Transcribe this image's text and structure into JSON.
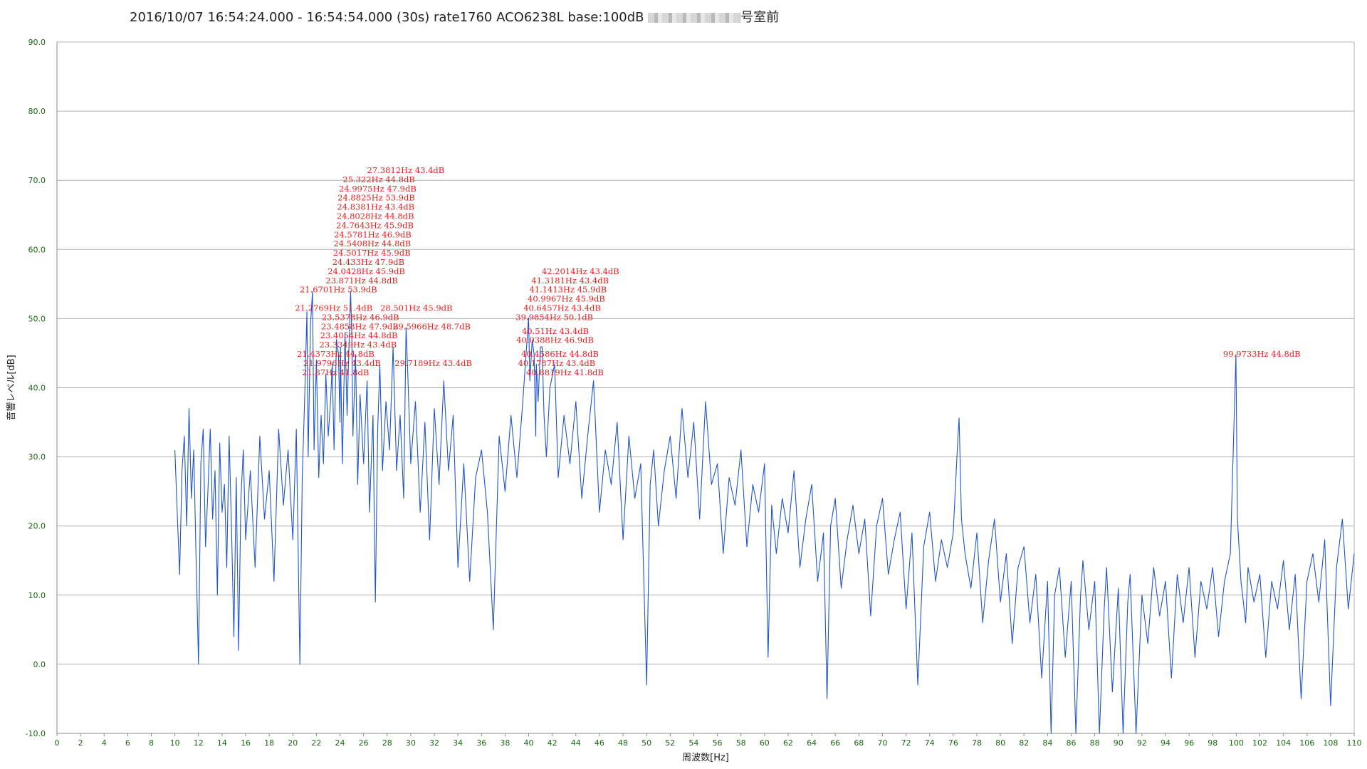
{
  "title": {
    "prefix": "2016/10/07 16:54:24.000 - 16:54:54.000 (30s) rate1760 ACO6238L base:100dB",
    "suffix": "号室前"
  },
  "colors": {
    "series": "#1f55cc",
    "grid": "#b4b4b4",
    "ticks": "#176b0f",
    "annotations": "#ee1c1c"
  },
  "chart_data": {
    "type": "line",
    "xlabel": "周波数[Hz]",
    "ylabel": "音響レベル[dB]",
    "xlim": [
      0,
      110
    ],
    "ylim": [
      -10,
      90
    ],
    "x_tick_step": 2,
    "y_ticks": [
      "-10.0",
      "0.0",
      "10.0",
      "20.0",
      "30.0",
      "40.0",
      "50.0",
      "60.0",
      "70.0",
      "80.0",
      "90.0"
    ],
    "grid": "horizontal",
    "series": [
      {
        "values": [
          [
            10,
            31
          ],
          [
            10.2,
            22
          ],
          [
            10.4,
            13
          ],
          [
            10.6,
            28
          ],
          [
            10.8,
            33
          ],
          [
            11,
            20
          ],
          [
            11.2,
            37
          ],
          [
            11.4,
            24
          ],
          [
            11.6,
            31
          ],
          [
            11.8,
            15
          ],
          [
            12,
            0
          ],
          [
            12.2,
            29
          ],
          [
            12.4,
            34
          ],
          [
            12.6,
            17
          ],
          [
            12.8,
            25
          ],
          [
            13,
            34
          ],
          [
            13.2,
            21
          ],
          [
            13.4,
            28
          ],
          [
            13.6,
            10
          ],
          [
            13.8,
            32
          ],
          [
            14,
            22
          ],
          [
            14.2,
            26
          ],
          [
            14.4,
            14
          ],
          [
            14.6,
            33
          ],
          [
            14.8,
            20
          ],
          [
            15,
            4
          ],
          [
            15.2,
            27
          ],
          [
            15.4,
            2
          ],
          [
            15.6,
            24
          ],
          [
            15.8,
            31
          ],
          [
            16,
            18
          ],
          [
            16.4,
            28
          ],
          [
            16.8,
            14
          ],
          [
            17.2,
            33
          ],
          [
            17.6,
            21
          ],
          [
            18,
            28
          ],
          [
            18.4,
            12
          ],
          [
            18.8,
            34
          ],
          [
            19.2,
            23
          ],
          [
            19.6,
            31
          ],
          [
            20,
            18
          ],
          [
            20.3,
            34
          ],
          [
            20.6,
            0
          ],
          [
            20.8,
            27
          ],
          [
            21,
            38
          ],
          [
            21.2,
            51
          ],
          [
            21.3,
            30
          ],
          [
            21.5,
            49
          ],
          [
            21.67,
            53.9
          ],
          [
            21.8,
            31
          ],
          [
            22,
            44
          ],
          [
            22.2,
            27
          ],
          [
            22.4,
            36
          ],
          [
            22.6,
            29
          ],
          [
            22.8,
            42
          ],
          [
            23,
            33
          ],
          [
            23.2,
            38
          ],
          [
            23.34,
            43.4
          ],
          [
            23.5,
            31
          ],
          [
            23.7,
            47
          ],
          [
            23.87,
            44.8
          ],
          [
            24,
            35
          ],
          [
            24.04,
            45.9
          ],
          [
            24.2,
            29
          ],
          [
            24.43,
            47.9
          ],
          [
            24.6,
            36
          ],
          [
            24.76,
            45.9
          ],
          [
            24.9,
            53.9
          ],
          [
            25,
            47.9
          ],
          [
            25.1,
            33
          ],
          [
            25.32,
            44.8
          ],
          [
            25.5,
            26
          ],
          [
            25.7,
            39
          ],
          [
            26,
            29
          ],
          [
            26.3,
            41
          ],
          [
            26.5,
            22
          ],
          [
            26.8,
            36
          ],
          [
            27,
            9
          ],
          [
            27.2,
            34
          ],
          [
            27.38,
            43.4
          ],
          [
            27.6,
            28
          ],
          [
            27.9,
            38
          ],
          [
            28.2,
            31
          ],
          [
            28.5,
            45.9
          ],
          [
            28.8,
            28
          ],
          [
            29.1,
            36
          ],
          [
            29.4,
            24
          ],
          [
            29.6,
            48.7
          ],
          [
            29.72,
            43.4
          ],
          [
            30,
            29
          ],
          [
            30.4,
            38
          ],
          [
            30.8,
            22
          ],
          [
            31.2,
            35
          ],
          [
            31.6,
            18
          ],
          [
            32,
            37
          ],
          [
            32.4,
            26
          ],
          [
            32.8,
            41
          ],
          [
            33.2,
            28
          ],
          [
            33.6,
            36
          ],
          [
            34,
            14
          ],
          [
            34.5,
            29
          ],
          [
            35,
            12
          ],
          [
            35.5,
            27
          ],
          [
            36,
            31
          ],
          [
            36.5,
            22
          ],
          [
            37,
            5
          ],
          [
            37.5,
            33
          ],
          [
            38,
            25
          ],
          [
            38.5,
            36
          ],
          [
            39,
            27
          ],
          [
            39.5,
            38
          ],
          [
            39.99,
            50.1
          ],
          [
            40.1,
            41
          ],
          [
            40.3,
            46.9
          ],
          [
            40.46,
            44.8
          ],
          [
            40.6,
            33
          ],
          [
            40.65,
            43.4
          ],
          [
            40.8,
            38
          ],
          [
            41,
            45.9
          ],
          [
            41.14,
            45.9
          ],
          [
            41.3,
            36
          ],
          [
            41.5,
            30
          ],
          [
            41.8,
            40
          ],
          [
            42.2,
            43.4
          ],
          [
            42.5,
            27
          ],
          [
            43,
            36
          ],
          [
            43.5,
            29
          ],
          [
            44,
            38
          ],
          [
            44.5,
            24
          ],
          [
            45,
            33
          ],
          [
            45.5,
            41
          ],
          [
            46,
            22
          ],
          [
            46.5,
            31
          ],
          [
            47,
            26
          ],
          [
            47.5,
            35
          ],
          [
            48,
            18
          ],
          [
            48.5,
            33
          ],
          [
            49,
            24
          ],
          [
            49.5,
            29
          ],
          [
            50,
            -3
          ],
          [
            50.3,
            26
          ],
          [
            50.6,
            31
          ],
          [
            51,
            20
          ],
          [
            51.5,
            28
          ],
          [
            52,
            33
          ],
          [
            52.5,
            24
          ],
          [
            53,
            37
          ],
          [
            53.5,
            27
          ],
          [
            54,
            35
          ],
          [
            54.5,
            21
          ],
          [
            55,
            38
          ],
          [
            55.5,
            26
          ],
          [
            56,
            29
          ],
          [
            56.5,
            16
          ],
          [
            57,
            27
          ],
          [
            57.5,
            23
          ],
          [
            58,
            31
          ],
          [
            58.5,
            17
          ],
          [
            59,
            26
          ],
          [
            59.5,
            22
          ],
          [
            60,
            29
          ],
          [
            60.3,
            1
          ],
          [
            60.6,
            23
          ],
          [
            61,
            16
          ],
          [
            61.5,
            24
          ],
          [
            62,
            19
          ],
          [
            62.5,
            28
          ],
          [
            63,
            14
          ],
          [
            63.5,
            21
          ],
          [
            64,
            26
          ],
          [
            64.5,
            12
          ],
          [
            65,
            19
          ],
          [
            65.3,
            -5
          ],
          [
            65.6,
            20
          ],
          [
            66,
            24
          ],
          [
            66.5,
            11
          ],
          [
            67,
            18
          ],
          [
            67.5,
            23
          ],
          [
            68,
            16
          ],
          [
            68.5,
            21
          ],
          [
            69,
            7
          ],
          [
            69.5,
            20
          ],
          [
            70,
            24
          ],
          [
            70.5,
            13
          ],
          [
            71,
            18
          ],
          [
            71.5,
            22
          ],
          [
            72,
            8
          ],
          [
            72.5,
            19
          ],
          [
            73,
            -3
          ],
          [
            73.5,
            17
          ],
          [
            74,
            22
          ],
          [
            74.5,
            12
          ],
          [
            75,
            18
          ],
          [
            75.5,
            14
          ],
          [
            76,
            19
          ],
          [
            76.4,
            33
          ],
          [
            76.5,
            35.6
          ],
          [
            76.7,
            21
          ],
          [
            77,
            16
          ],
          [
            77.5,
            11
          ],
          [
            78,
            19
          ],
          [
            78.5,
            6
          ],
          [
            79,
            15
          ],
          [
            79.5,
            21
          ],
          [
            80,
            9
          ],
          [
            80.5,
            16
          ],
          [
            81,
            3
          ],
          [
            81.5,
            14
          ],
          [
            82,
            17
          ],
          [
            82.5,
            6
          ],
          [
            83,
            13
          ],
          [
            83.5,
            -2
          ],
          [
            84,
            12
          ],
          [
            84.3,
            -10
          ],
          [
            84.6,
            10
          ],
          [
            85,
            14
          ],
          [
            85.5,
            1
          ],
          [
            86,
            12
          ],
          [
            86.4,
            -10
          ],
          [
            86.8,
            10
          ],
          [
            87,
            15
          ],
          [
            87.5,
            5
          ],
          [
            88,
            12
          ],
          [
            88.4,
            -10
          ],
          [
            88.8,
            8
          ],
          [
            89,
            14
          ],
          [
            89.5,
            -4
          ],
          [
            90,
            11
          ],
          [
            90.4,
            -10
          ],
          [
            90.8,
            9
          ],
          [
            91,
            13
          ],
          [
            91.5,
            -10
          ],
          [
            92,
            10
          ],
          [
            92.5,
            3
          ],
          [
            93,
            14
          ],
          [
            93.5,
            7
          ],
          [
            94,
            12
          ],
          [
            94.5,
            -2
          ],
          [
            95,
            13
          ],
          [
            95.5,
            6
          ],
          [
            96,
            14
          ],
          [
            96.5,
            1
          ],
          [
            97,
            12
          ],
          [
            97.5,
            8
          ],
          [
            98,
            14
          ],
          [
            98.5,
            4
          ],
          [
            99,
            12
          ],
          [
            99.5,
            16
          ],
          [
            99.97,
            44.8
          ],
          [
            100.1,
            21
          ],
          [
            100.4,
            12
          ],
          [
            100.8,
            6
          ],
          [
            101,
            14
          ],
          [
            101.5,
            9
          ],
          [
            102,
            13
          ],
          [
            102.5,
            1
          ],
          [
            103,
            12
          ],
          [
            103.5,
            8
          ],
          [
            104,
            15
          ],
          [
            104.5,
            5
          ],
          [
            105,
            13
          ],
          [
            105.5,
            -5
          ],
          [
            106,
            12
          ],
          [
            106.5,
            16
          ],
          [
            107,
            9
          ],
          [
            107.5,
            18
          ],
          [
            108,
            -6
          ],
          [
            108.5,
            14
          ],
          [
            109,
            21
          ],
          [
            109.5,
            8
          ],
          [
            110,
            16
          ]
        ]
      }
    ],
    "annotations": [
      {
        "x": 27.3812,
        "level": 0,
        "text": "27.3812Hz  43.4dB"
      },
      {
        "x": 25.322,
        "level": 1,
        "text": "25.322Hz  44.8dB"
      },
      {
        "x": 24.9975,
        "level": 2,
        "text": "24.9975Hz  47.9dB"
      },
      {
        "x": 24.8825,
        "level": 3,
        "text": "24.8825Hz  53.9dB"
      },
      {
        "x": 24.8381,
        "level": 4,
        "text": "24.8381Hz  43.4dB"
      },
      {
        "x": 24.8028,
        "level": 5,
        "text": "24.8028Hz  44.8dB"
      },
      {
        "x": 24.7643,
        "level": 6,
        "text": "24.7643Hz  45.9dB"
      },
      {
        "x": 24.5781,
        "level": 7,
        "text": "24.5781Hz  46.9dB"
      },
      {
        "x": 24.5408,
        "level": 8,
        "text": "24.5408Hz  44.8dB"
      },
      {
        "x": 24.5017,
        "level": 9,
        "text": "24.5017Hz  45.9dB"
      },
      {
        "x": 24.433,
        "level": 10,
        "text": "24.433Hz  47.9dB"
      },
      {
        "x": 24.0428,
        "level": 11,
        "text": "24.0428Hz  45.9dB"
      },
      {
        "x": 23.871,
        "level": 12,
        "text": "23.871Hz  44.8dB"
      },
      {
        "x": 21.6701,
        "level": 13,
        "text": "21.6701Hz  53.9dB"
      },
      {
        "x": 21.2769,
        "level": 15,
        "text": "21.2769Hz  51.4dB"
      },
      {
        "x": 28.501,
        "level": 15,
        "text": "28.501Hz  45.9dB"
      },
      {
        "x": 23.5378,
        "level": 16,
        "text": "23.5378Hz  46.9dB"
      },
      {
        "x": 23.4858,
        "level": 17,
        "text": "23.4858Hz  47.9dB"
      },
      {
        "x": 29.5966,
        "level": 17,
        "text": "29.5966Hz  48.7dB"
      },
      {
        "x": 23.4054,
        "level": 18,
        "text": "23.4054Hz  44.8dB"
      },
      {
        "x": 23.3349,
        "level": 19,
        "text": "23.3349Hz  43.4dB"
      },
      {
        "x": 21.4373,
        "level": 20,
        "text": "21.4373Hz  44.8dB"
      },
      {
        "x": 21.9796,
        "level": 21,
        "text": "21.9796Hz  43.4dB"
      },
      {
        "x": 29.7189,
        "level": 21,
        "text": "29.7189Hz  43.4dB"
      },
      {
        "x": 21.87,
        "level": 22,
        "text": "21.87Hz  41.8dB"
      },
      {
        "x": 42.2014,
        "level": 11,
        "text": "42.2014Hz  43.4dB"
      },
      {
        "x": 41.3181,
        "level": 12,
        "text": "41.3181Hz  43.4dB"
      },
      {
        "x": 41.1413,
        "level": 13,
        "text": "41.1413Hz  45.9dB"
      },
      {
        "x": 40.9967,
        "level": 14,
        "text": "40.9967Hz  45.9dB"
      },
      {
        "x": 40.6457,
        "level": 15,
        "text": "40.6457Hz  43.4dB"
      },
      {
        "x": 39.9854,
        "level": 16,
        "text": "39.9854Hz  50.1dB"
      },
      {
        "x": 40.51,
        "level": 17.5,
        "text": "40.51Hz  43.4dB"
      },
      {
        "x": 40.0388,
        "level": 18.5,
        "text": "40.0388Hz  46.9dB"
      },
      {
        "x": 40.4586,
        "level": 20,
        "text": "40.4586Hz  44.8dB"
      },
      {
        "x": 40.1787,
        "level": 21,
        "text": "40.1787Hz  43.4dB"
      },
      {
        "x": 40.8819,
        "level": 22,
        "text": "40.8819Hz  41.8dB"
      },
      {
        "x": 99.9733,
        "level": 20,
        "text": "99.9733Hz  44.8dB"
      }
    ]
  }
}
